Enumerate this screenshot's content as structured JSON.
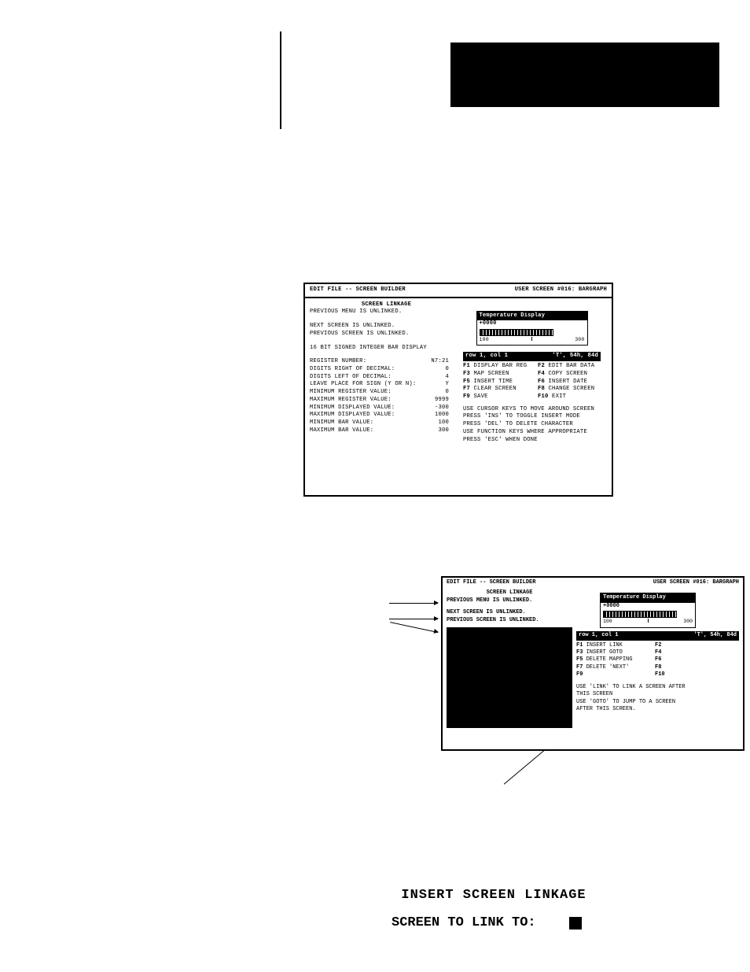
{
  "colors": {
    "fg": "#000000",
    "bg": "#ffffff",
    "inv_fg": "#ffffff",
    "inv_bg": "#000000"
  },
  "term1": {
    "header_left": "EDIT FILE -- SCREEN BUILDER",
    "header_right": "USER SCREEN #016: BARGRAPH",
    "linkage_title": "SCREEN LINKAGE",
    "prev_menu": "PREVIOUS MENU IS UNLINKED.",
    "next_screen": "NEXT SCREEN IS UNLINKED.",
    "prev_screen": "PREVIOUS SCREEN IS UNLINKED.",
    "subtitle": "16 BIT SIGNED INTEGER BAR DISPLAY",
    "fields": [
      {
        "label": "REGISTER NUMBER:",
        "value": "N7:21"
      },
      {
        "label": "DIGITS RIGHT OF DECIMAL:",
        "value": "0"
      },
      {
        "label": "DIGITS LEFT OF DECIMAL:",
        "value": "4"
      },
      {
        "label": "LEAVE PLACE FOR SIGN (Y OR N):",
        "value": "Y"
      },
      {
        "label": "MINIMUM REGISTER VALUE:",
        "value": "0"
      },
      {
        "label": "MAXIMUM REGISTER VALUE:",
        "value": "9999"
      },
      {
        "label": "MINIMUM DISPLAYED VALUE:",
        "value": "-300"
      },
      {
        "label": "MAXIMUM DISPLAYED VALUE:",
        "value": "1000"
      },
      {
        "label": "MINIMUM BAR VALUE:",
        "value": "100"
      },
      {
        "label": "MAXIMUM BAR VALUE:",
        "value": "300"
      }
    ],
    "temp": {
      "title": "Temperature Display",
      "value": "+0000",
      "scale_lo": "100",
      "scale_hi": "300"
    },
    "status_left": "row  1, col  1",
    "status_right": "'T', 54h,  84d",
    "fkeys": [
      {
        "a": "F1",
        "al": "DISPLAY BAR REG",
        "b": "F2",
        "bl": "EDIT BAR DATA"
      },
      {
        "a": "F3",
        "al": "MAP SCREEN",
        "b": "F4",
        "bl": "COPY SCREEN"
      },
      {
        "a": "F5",
        "al": "INSERT TIME",
        "b": "F6",
        "bl": "INSERT DATE"
      },
      {
        "a": "F7",
        "al": "CLEAR SCREEN",
        "b": "F8",
        "bl": "CHANGE SCREEN"
      },
      {
        "a": "F9",
        "al": "SAVE",
        "b": "F10",
        "bl": "EXIT"
      }
    ],
    "hints": [
      "USE CURSOR KEYS TO MOVE AROUND SCREEN",
      "PRESS 'INS' TO TOGGLE INSERT MODE",
      "PRESS 'DEL' TO DELETE CHARACTER",
      "USE FUNCTION KEYS WHERE APPROPRIATE",
      "PRESS 'ESC' WHEN DONE"
    ]
  },
  "term2": {
    "header_left": "EDIT FILE -- SCREEN BUILDER",
    "header_right": "USER SCREEN #016: BARGRAPH",
    "linkage_title": "SCREEN LINKAGE",
    "prev_menu": "PREVIOUS MENU IS UNLINKED.",
    "next_screen": "NEXT SCREEN IS UNLINKED.",
    "prev_screen": "PREVIOUS SCREEN IS UNLINKED.",
    "temp": {
      "title": "Temperature Display",
      "value": "+0000",
      "scale_lo": "100",
      "scale_hi": "300"
    },
    "status_left": "row  1, col  1",
    "status_right": "'T', 54h,  84d",
    "fkeys": [
      {
        "a": "F1",
        "al": "INSERT LINK",
        "b": "F2",
        "bl": ""
      },
      {
        "a": "F3",
        "al": "INSERT GOTO",
        "b": "F4",
        "bl": ""
      },
      {
        "a": "F5",
        "al": "DELETE MAPPING",
        "b": "F6",
        "bl": ""
      },
      {
        "a": "F7",
        "al": "DELETE 'NEXT'",
        "b": "F8",
        "bl": ""
      },
      {
        "a": "F9",
        "al": "",
        "b": "F10",
        "bl": ""
      }
    ],
    "hints": [
      "USE 'LINK' TO LINK A SCREEN AFTER",
      "THIS SCREEN",
      "USE 'GOTO' TO JUMP TO A SCREEN",
      "AFTER THIS SCREEN."
    ]
  },
  "prompt": {
    "title": "INSERT SCREEN LINKAGE",
    "label": "SCREEN TO LINK TO:"
  }
}
